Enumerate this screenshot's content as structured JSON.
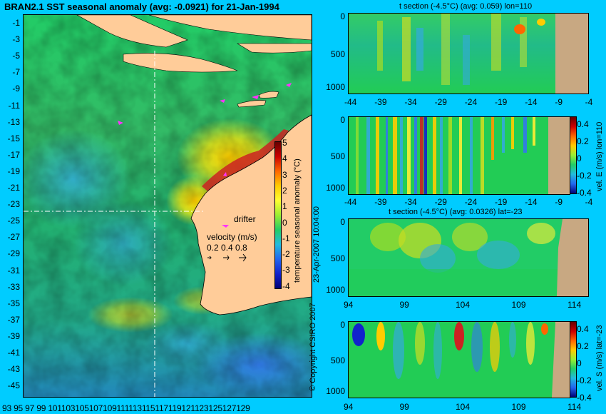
{
  "main_map": {
    "title": "BRAN2.1 SST seasonal anomaly (avg: -0.0921) for 21-Jan-1994",
    "y_ticks": [
      "-1",
      "-3",
      "-5",
      "-7",
      "-9",
      "-11",
      "-13",
      "-15",
      "-17",
      "-19",
      "-21",
      "-23",
      "-25",
      "-27",
      "-29",
      "-31",
      "-33",
      "-35",
      "-37",
      "-39",
      "-41",
      "-43",
      "-45"
    ],
    "x_ticks": [
      "93",
      "95",
      "97",
      "99",
      "101",
      "103",
      "105",
      "107",
      "109",
      "111",
      "113",
      "115",
      "117",
      "119",
      "121",
      "123",
      "125",
      "127",
      "129"
    ],
    "x_ticks_display": "93 95 97 99 101103105107109111113115117119121123125127129",
    "drifter_label": "drifter",
    "velocity_title": "velocity (m/s)",
    "velocity_values": "0.2  0.4  0.8",
    "colorbar": {
      "label": "temperature seasonal anomaly (°C)",
      "ticks": [
        "5",
        "4",
        "3",
        "2",
        "1",
        "0",
        "-1",
        "-2",
        "-3",
        "-4"
      ]
    },
    "copyright": "© Copyright CSIRO 2007",
    "date_stamp": "23-Apr-2007 10:04:00"
  },
  "panels": [
    {
      "title": "t section (-4.5°C) (avg: 0.059) lon=110",
      "y_ticks": [
        "0",
        "500",
        "1000"
      ],
      "x_ticks": [
        "-44",
        "-39",
        "-34",
        "-29",
        "-24",
        "-19",
        "-14",
        "-9",
        "-4"
      ]
    },
    {
      "title": "",
      "y_ticks": [
        "0",
        "500",
        "1000"
      ],
      "x_ticks": [
        "-44",
        "-39",
        "-34",
        "-29",
        "-24",
        "-19",
        "-14",
        "-9",
        "-4"
      ],
      "colorbar_label": "vel. E (m/s) lon=110",
      "colorbar_ticks": [
        "0.4",
        "0.2",
        "0",
        "-0.2",
        "-0.4"
      ]
    },
    {
      "title": "t section (-4.5°C) (avg: 0.0326) lat=-23",
      "y_ticks": [
        "0",
        "500",
        "1000"
      ],
      "x_ticks": [
        "94",
        "99",
        "104",
        "109",
        "114"
      ]
    },
    {
      "title": "",
      "y_ticks": [
        "0",
        "500",
        "1000"
      ],
      "x_ticks": [
        "94",
        "99",
        "104",
        "109",
        "114"
      ],
      "colorbar_label": "vel. S (m/s) lat=-23",
      "colorbar_ticks": [
        "0.4",
        "0.2",
        "0",
        "-0.2",
        "-0.4"
      ]
    }
  ],
  "colors": {
    "background": "#00ccff",
    "land": "#ffcc99",
    "section_land": "#c8a882",
    "drifter": "#ff33ff"
  }
}
